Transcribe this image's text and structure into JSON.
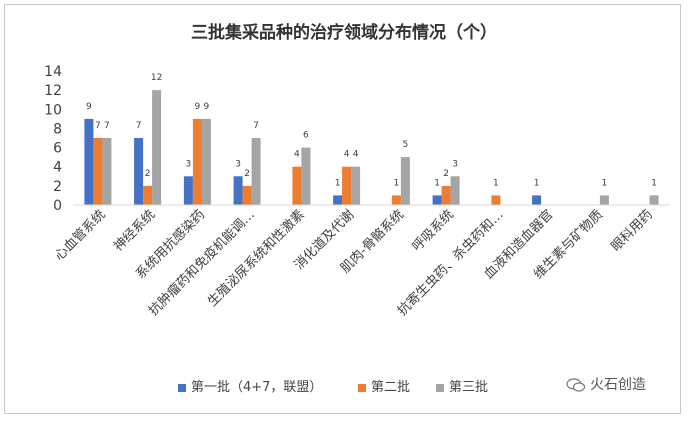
{
  "title": "三批集采品种的治疗领域分布情况（个）",
  "watermark": "火石创造",
  "chart_data": {
    "type": "bar",
    "categories": [
      "心血管系统",
      "神经系统",
      "系统用抗感染药",
      "抗肿瘤药和免疫机能调…",
      "生殖泌尿系统和性激素",
      "消化道及代谢",
      "肌肉-骨骼系统",
      "呼吸系统",
      "抗寄生虫药、杀虫药和…",
      "血液和造血器官",
      "维生素与矿物质",
      "眼科用药"
    ],
    "series": [
      {
        "name": "第一批（4+7，联盟）",
        "color": "#4472c4",
        "values": [
          9,
          7,
          3,
          3,
          0,
          1,
          0,
          1,
          0,
          1,
          0,
          0
        ]
      },
      {
        "name": "第二批",
        "color": "#ed7d31",
        "values": [
          7,
          2,
          9,
          2,
          4,
          4,
          1,
          2,
          1,
          0,
          0,
          0
        ]
      },
      {
        "name": "第三批",
        "color": "#a5a5a5",
        "values": [
          7,
          12,
          9,
          7,
          6,
          4,
          5,
          3,
          0,
          0,
          1,
          1
        ]
      }
    ],
    "yticks": [
      "0",
      "2",
      "4",
      "6",
      "8",
      "10",
      "12",
      "14"
    ],
    "ylim": [
      0,
      14
    ],
    "xlabel": "",
    "ylabel": "",
    "legend": "bottom"
  }
}
